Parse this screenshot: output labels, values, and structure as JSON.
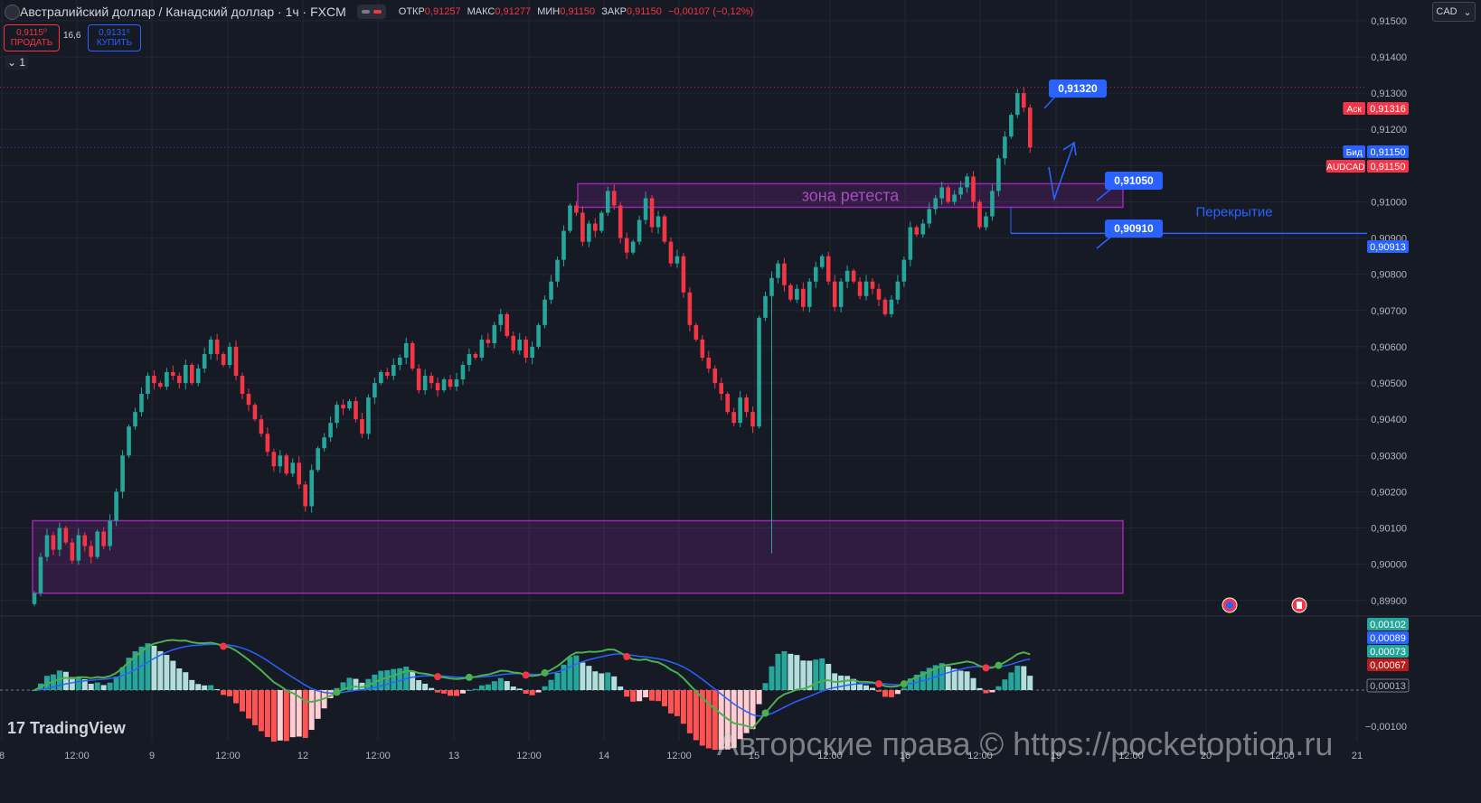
{
  "header": {
    "title": "Австралийский доллар / Канадский доллар · 1ч · FXCM",
    "ohlc": [
      {
        "label": "ОТКР",
        "value": "0,91257"
      },
      {
        "label": "МАКС",
        "value": "0,91277"
      },
      {
        "label": "МИН",
        "value": "0,91150"
      },
      {
        "label": "ЗАКР",
        "value": "0,91150"
      }
    ],
    "change": "−0,00107 (−0,12%)",
    "currency": "CAD"
  },
  "trade": {
    "sell_price": "0,9115⁰",
    "sell_label": "ПРОДАТЬ",
    "spread": "16,6",
    "buy_price": "0,9131⁶",
    "buy_label": "КУПИТЬ",
    "lot": "1"
  },
  "brand": "TradingView",
  "watermark": "Авторские права © https://pocketoption.ru",
  "colors": {
    "background": "#161a25",
    "up": "#26a69a",
    "down": "#f23645",
    "zone": "#9c27b0",
    "accent": "#2962ff"
  },
  "chart_data": {
    "type": "candlestick",
    "y_axis_ticks": [
      "0,91500",
      "0,91400",
      "0,91300",
      "0,91200",
      "0,91100",
      "0,91000",
      "0,90900",
      "0,90800",
      "0,90700",
      "0,90600",
      "0,90500",
      "0,90400",
      "0,90300",
      "0,90200",
      "0,90100",
      "0,90000",
      "0,89900"
    ],
    "ylim": [
      0.8988,
      0.9155
    ],
    "x_axis_ticks": [
      "8",
      "12:00",
      "9",
      "12:00",
      "12",
      "12:00",
      "13",
      "12:00",
      "14",
      "12:00",
      "15",
      "12:00",
      "16",
      "12:00",
      "19",
      "12:00",
      "20",
      "12:00",
      "21"
    ],
    "closes": [
      0.8992,
      0.9002,
      0.9008,
      0.9004,
      0.901,
      0.9006,
      0.9001,
      0.9008,
      0.9005,
      0.9002,
      0.9009,
      0.9005,
      0.9012,
      0.902,
      0.903,
      0.9038,
      0.9042,
      0.9047,
      0.9052,
      0.905,
      0.9049,
      0.9053,
      0.9052,
      0.905,
      0.9055,
      0.905,
      0.9054,
      0.9058,
      0.9062,
      0.9058,
      0.9055,
      0.906,
      0.9052,
      0.9047,
      0.9044,
      0.904,
      0.9036,
      0.9031,
      0.9027,
      0.903,
      0.9025,
      0.9028,
      0.9022,
      0.9016,
      0.9026,
      0.9032,
      0.9035,
      0.9039,
      0.9044,
      0.9043,
      0.9045,
      0.904,
      0.9036,
      0.9046,
      0.905,
      0.9053,
      0.9052,
      0.9055,
      0.9057,
      0.9061,
      0.9054,
      0.9048,
      0.9052,
      0.905,
      0.9048,
      0.9051,
      0.9049,
      0.9051,
      0.9055,
      0.9058,
      0.9057,
      0.9062,
      0.9061,
      0.9066,
      0.9069,
      0.9063,
      0.9059,
      0.9062,
      0.9057,
      0.906,
      0.9066,
      0.9073,
      0.9078,
      0.9084,
      0.9092,
      0.9099,
      0.9097,
      0.9089,
      0.9094,
      0.9092,
      0.9097,
      0.9103,
      0.9099,
      0.909,
      0.9086,
      0.9089,
      0.9095,
      0.9101,
      0.9093,
      0.9096,
      0.9089,
      0.9083,
      0.9085,
      0.9075,
      0.9066,
      0.9062,
      0.9057,
      0.9054,
      0.905,
      0.9047,
      0.9042,
      0.9039,
      0.9046,
      0.9042,
      0.9038,
      0.9068,
      0.9074,
      0.9079,
      0.9083,
      0.9077,
      0.9073,
      0.9076,
      0.9071,
      0.9078,
      0.9082,
      0.9085,
      0.9078,
      0.9071,
      0.9078,
      0.9081,
      0.9078,
      0.9074,
      0.9078,
      0.9076,
      0.9073,
      0.9069,
      0.9073,
      0.9078,
      0.9084,
      0.9093,
      0.9091,
      0.9094,
      0.9098,
      0.9101,
      0.9104,
      0.91,
      0.9102,
      0.9104,
      0.9107,
      0.91,
      0.9093,
      0.9096,
      0.9103,
      0.9112,
      0.9118,
      0.9124,
      0.913,
      0.9126,
      0.9115
    ],
    "zones": [
      {
        "label": "зона ретеста",
        "top": 0.9105,
        "bottom": 0.90985,
        "from_index": 78,
        "to_index": 158
      },
      {
        "label": "",
        "top": 0.9012,
        "bottom": 0.8992,
        "from_index": 4,
        "to_index": 158
      }
    ],
    "annotations": [
      {
        "text": "0,91320",
        "price": 0.9132
      },
      {
        "text": "0,91050",
        "price": 0.9105
      },
      {
        "text": "0,90910",
        "price": 0.9091
      }
    ],
    "overlap_label": "Перекрытие",
    "price_tags": [
      {
        "label": "Аск",
        "value": "0,91316",
        "price": 0.91316,
        "color": "#f23645"
      },
      {
        "label": "Бид",
        "value": "0,91150",
        "price": 0.91175,
        "color": "#2962ff"
      },
      {
        "label": "AUDCAD",
        "value": "0,91150",
        "price": 0.91138,
        "color": "#f23645"
      },
      {
        "label": "",
        "value": "0,90913",
        "price": 0.90913,
        "color": "#2962ff"
      }
    ],
    "macd_ticks": [
      "0,00102",
      "0,00089",
      "0,00073",
      "0,00067",
      "0,00013",
      "−0,00100"
    ],
    "macd_tick_colors": [
      "#26a69a",
      "#2962ff",
      "#26a69a",
      "#b71c1c",
      "#787b86",
      "#787b86"
    ]
  }
}
